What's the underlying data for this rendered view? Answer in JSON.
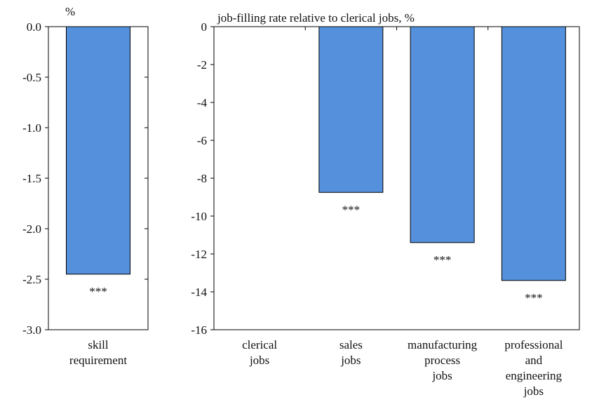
{
  "colors": {
    "bar": "#5590DC",
    "axis": "#000000",
    "text": "#111111"
  },
  "chart_data": [
    {
      "type": "bar",
      "title": "%",
      "categories": [
        [
          "skill",
          "requirement"
        ]
      ],
      "values": [
        -2.45
      ],
      "annotations": [
        "***"
      ],
      "yticks": [
        "0.0",
        "-0.5",
        "-1.0",
        "-1.5",
        "-2.0",
        "-2.5",
        "-3.0"
      ],
      "ylim": [
        -3.0,
        0.0
      ],
      "grid": false
    },
    {
      "type": "bar",
      "title": "job-filling  rate relative to clerical  jobs, %",
      "categories": [
        [
          "clerical",
          "jobs"
        ],
        [
          "sales",
          "jobs"
        ],
        [
          "manufacturing",
          "process",
          "jobs"
        ],
        [
          "professional",
          "and",
          "engineering",
          "jobs"
        ]
      ],
      "values": [
        0,
        -8.75,
        -11.4,
        -13.4
      ],
      "annotations": [
        "",
        "***",
        "***",
        "***"
      ],
      "yticks": [
        "0",
        "-2",
        "-4",
        "-6",
        "-8",
        "-10",
        "-12",
        "-14",
        "-16"
      ],
      "ylim": [
        -16,
        0
      ],
      "grid": false
    }
  ]
}
